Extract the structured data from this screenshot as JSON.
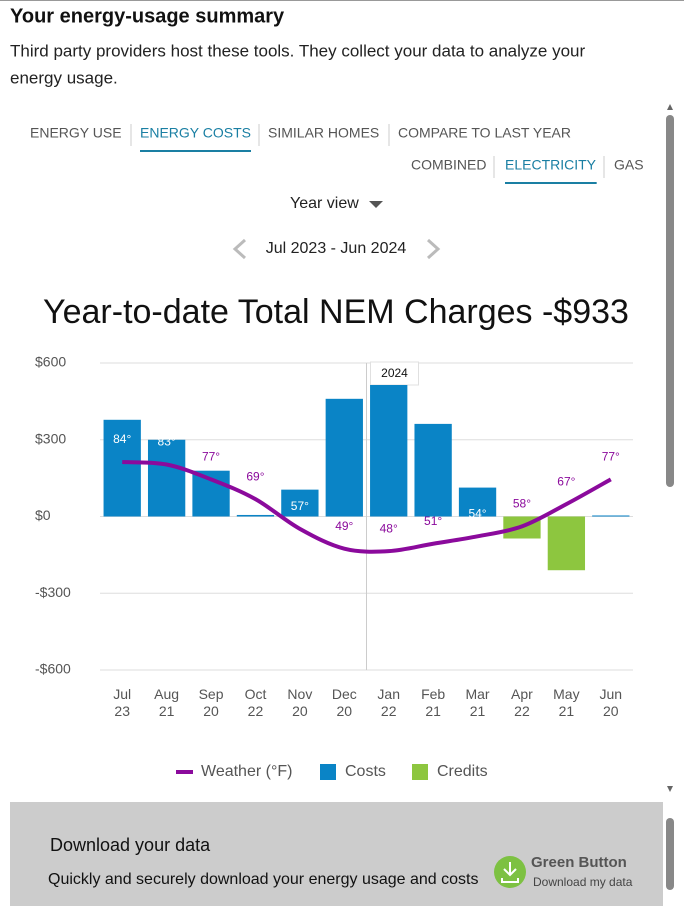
{
  "header": {
    "title": "Your energy-usage summary",
    "description": [
      "Third party providers host these tools. They collect your data to analyze your",
      "energy usage."
    ]
  },
  "tabs": [
    "ENERGY USE",
    "ENERGY COSTS",
    "SIMILAR HOMES",
    "COMPARE TO LAST YEAR"
  ],
  "active_tab": 1,
  "fuel_tabs": [
    "COMBINED",
    "ELECTRICITY",
    "GAS"
  ],
  "active_fuel_tab": 1,
  "view_selector": "Year view",
  "date_range": "Jul 2023 - Jun 2024",
  "chart_data": {
    "type": "bar",
    "title": "Year-to-date Total NEM Charges -$933",
    "categories": [
      "Jul 23",
      "Aug 21",
      "Sep 20",
      "Oct 22",
      "Nov 20",
      "Dec 20",
      "Jan 22",
      "Feb 21",
      "Mar 21",
      "Apr 22",
      "May 21",
      "Jun 20"
    ],
    "series": [
      {
        "name": "Weather (°F)",
        "type": "line",
        "axis": "y2",
        "color": "#8b0a9c",
        "values": [
          84,
          83,
          77,
          69,
          57,
          49,
          48,
          51,
          54,
          58,
          67,
          77
        ],
        "value_labels": [
          "84°",
          "83°",
          "77°",
          "69°",
          "57°",
          "49°",
          "48°",
          "51°",
          "54°",
          "58°",
          "67°",
          "77°"
        ]
      },
      {
        "name": "Costs",
        "type": "bar",
        "color": "#0a84c6",
        "values": [
          378,
          300,
          179,
          6,
          105,
          460,
          514,
          362,
          113,
          null,
          null,
          4
        ]
      },
      {
        "name": "Credits",
        "type": "bar",
        "color": "#8dc63f",
        "values": [
          null,
          null,
          null,
          null,
          null,
          null,
          null,
          null,
          null,
          -86,
          -210,
          null
        ]
      }
    ],
    "ylim": [
      -600,
      600
    ],
    "yticks": [
      {
        "value": 600,
        "label": "$600"
      },
      {
        "value": 300,
        "label": "$300"
      },
      {
        "value": 0,
        "label": "$0"
      },
      {
        "value": -300,
        "label": "-$300"
      },
      {
        "value": -600,
        "label": "-$600"
      }
    ],
    "y2lim": [
      0,
      124
    ],
    "grid": true,
    "annotation": "2024"
  },
  "download": {
    "title": "Download your data",
    "description": "Quickly and securely download your energy usage and costs",
    "button_title": "Green Button",
    "button_subtitle": "Download my data"
  }
}
